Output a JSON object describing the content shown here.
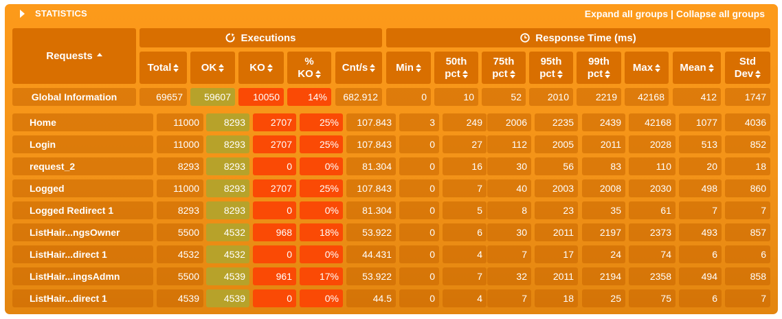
{
  "header": {
    "title": "STATISTICS",
    "expand_label": "Expand all groups",
    "separator": " | ",
    "collapse_label": "Collapse all groups"
  },
  "groups": {
    "executions": "Executions",
    "response_time": "Response Time (ms)"
  },
  "columns": {
    "requests": "Requests",
    "total": "Total",
    "ok": "OK",
    "ko": "KO",
    "ko_pct_1": "%",
    "ko_pct_2": "KO",
    "cnt": "Cnt/s",
    "min": "Min",
    "p50_1": "50th",
    "p50_2": "pct",
    "p75_1": "75th",
    "p75_2": "pct",
    "p95_1": "95th",
    "p95_2": "pct",
    "p99_1": "99th",
    "p99_2": "pct",
    "max": "Max",
    "mean": "Mean",
    "std_1": "Std",
    "std_2": "Dev"
  },
  "global": [
    "Global Information",
    "69657",
    "59607",
    "10050",
    "14%",
    "682.912",
    "0",
    "10",
    "52",
    "2010",
    "2219",
    "42168",
    "412",
    "1747"
  ],
  "rows": [
    [
      "Home",
      "11000",
      "8293",
      "2707",
      "25%",
      "107.843",
      "3",
      "249",
      "2006",
      "2235",
      "2439",
      "42168",
      "1077",
      "4036"
    ],
    [
      "Login",
      "11000",
      "8293",
      "2707",
      "25%",
      "107.843",
      "0",
      "27",
      "112",
      "2005",
      "2011",
      "2028",
      "513",
      "852"
    ],
    [
      "request_2",
      "8293",
      "8293",
      "0",
      "0%",
      "81.304",
      "0",
      "16",
      "30",
      "56",
      "83",
      "110",
      "20",
      "18"
    ],
    [
      "Logged",
      "11000",
      "8293",
      "2707",
      "25%",
      "107.843",
      "0",
      "7",
      "40",
      "2003",
      "2008",
      "2030",
      "498",
      "860"
    ],
    [
      "Logged Redirect 1",
      "8293",
      "8293",
      "0",
      "0%",
      "81.304",
      "0",
      "5",
      "8",
      "23",
      "35",
      "61",
      "7",
      "7"
    ],
    [
      "ListHair...ngsOwner",
      "5500",
      "4532",
      "968",
      "18%",
      "53.922",
      "0",
      "6",
      "30",
      "2011",
      "2197",
      "2373",
      "493",
      "857"
    ],
    [
      "ListHair...direct 1",
      "4532",
      "4532",
      "0",
      "0%",
      "44.431",
      "0",
      "4",
      "7",
      "17",
      "24",
      "74",
      "6",
      "6"
    ],
    [
      "ListHair...ingsAdmn",
      "5500",
      "4539",
      "961",
      "17%",
      "53.922",
      "0",
      "7",
      "32",
      "2011",
      "2194",
      "2358",
      "494",
      "858"
    ],
    [
      "ListHair...direct 1",
      "4539",
      "4539",
      "0",
      "0%",
      "44.5",
      "0",
      "4",
      "7",
      "18",
      "25",
      "75",
      "6",
      "7"
    ]
  ],
  "colors": {
    "panel": "#fd9a1a",
    "header": "#d96f00",
    "ok": "#b7a22a",
    "ko": "#fa4a05"
  }
}
